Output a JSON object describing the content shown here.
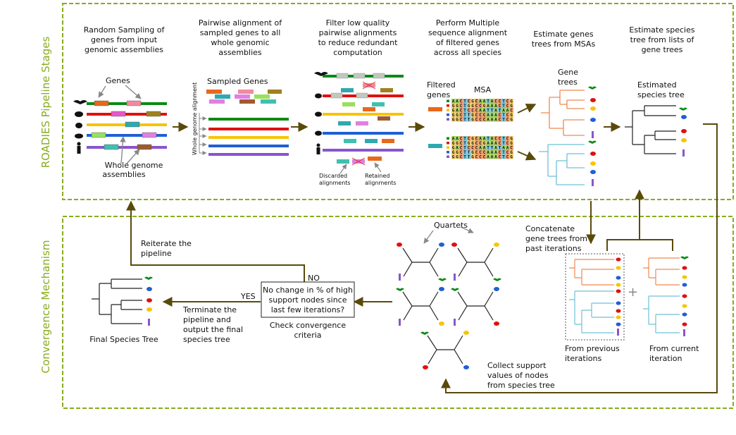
{
  "sections": {
    "pipeline": "ROADIES Pipeline Stages",
    "convergence": "Convergence Mechanism"
  },
  "stages": [
    {
      "line1": "Random Sampling of",
      "line2": "genes from input",
      "line3": "genomic assemblies"
    },
    {
      "line1": "Pairwise alignment of",
      "line2": "sampled genes to all",
      "line3": "whole genomic",
      "line4": "assemblies"
    },
    {
      "line1": "Filter low quality",
      "line2": "pairwise alignments",
      "line3": "to reduce redundant",
      "line4": "computation"
    },
    {
      "line1": "Perform Multiple",
      "line2": "sequence alignment",
      "line3": "of filtered genes",
      "line4": "across all species"
    },
    {
      "line1": "Estimate genes",
      "line2": "trees from MSAs"
    },
    {
      "line1": "Estimate species",
      "line2": "tree from lists of",
      "line3": "gene trees"
    }
  ],
  "labels": {
    "genes": "Genes",
    "whole_genome_1": "Whole genome",
    "whole_genome_2": "assemblies",
    "sampled_genes": "Sampled Genes",
    "wga_vertical": "Whole genome alignment",
    "discarded_1": "Discarded",
    "discarded_2": "alignments",
    "retained_1": "Retained",
    "retained_2": "alignments",
    "filtered_1": "Filtered",
    "filtered_2": "genes",
    "msa": "MSA",
    "gene_trees_1": "Gene",
    "gene_trees_2": "trees",
    "est_species_1": "Estimated",
    "est_species_2": "species tree",
    "reiterate_1": "Reiterate the",
    "reiterate_2": "pipeline",
    "no": "NO",
    "yes": "YES",
    "decision_1": "No change in % of high",
    "decision_2": "support nodes since",
    "decision_3": "last few iterations?",
    "check_1": "Check convergence",
    "check_2": "criteria",
    "terminate_1": "Terminate the",
    "terminate_2": "pipeline and",
    "terminate_3": "output the final",
    "terminate_4": "species tree",
    "final_tree": "Final Species Tree",
    "quartets": "Quartets",
    "collect_1": "Collect support",
    "collect_2": "values of nodes",
    "collect_3": "from species tree",
    "concat_1": "Concatenate",
    "concat_2": "gene trees from",
    "concat_3": "past iterations",
    "prev_1": "From previous",
    "prev_2": "iterations",
    "curr_1": "From current",
    "curr_2": "iteration",
    "plus": "+"
  },
  "msa_rows": [
    "AACTCGCAATACCTCG",
    "GGCTGGCCGAAACTCG",
    "GACTCCCAATTATAAC",
    "GGCTTGCCCAAACTCG",
    "GGCTTGCCCAAACTCG"
  ],
  "colors": {
    "border": "#8aab1f",
    "arrow": "#5a4a0a",
    "orange": "#f0894f",
    "blue": "#6ec0d8",
    "species": [
      "#0b8a16",
      "#e01010",
      "#f7c40a",
      "#1f5fd6",
      "#8855cc"
    ]
  }
}
